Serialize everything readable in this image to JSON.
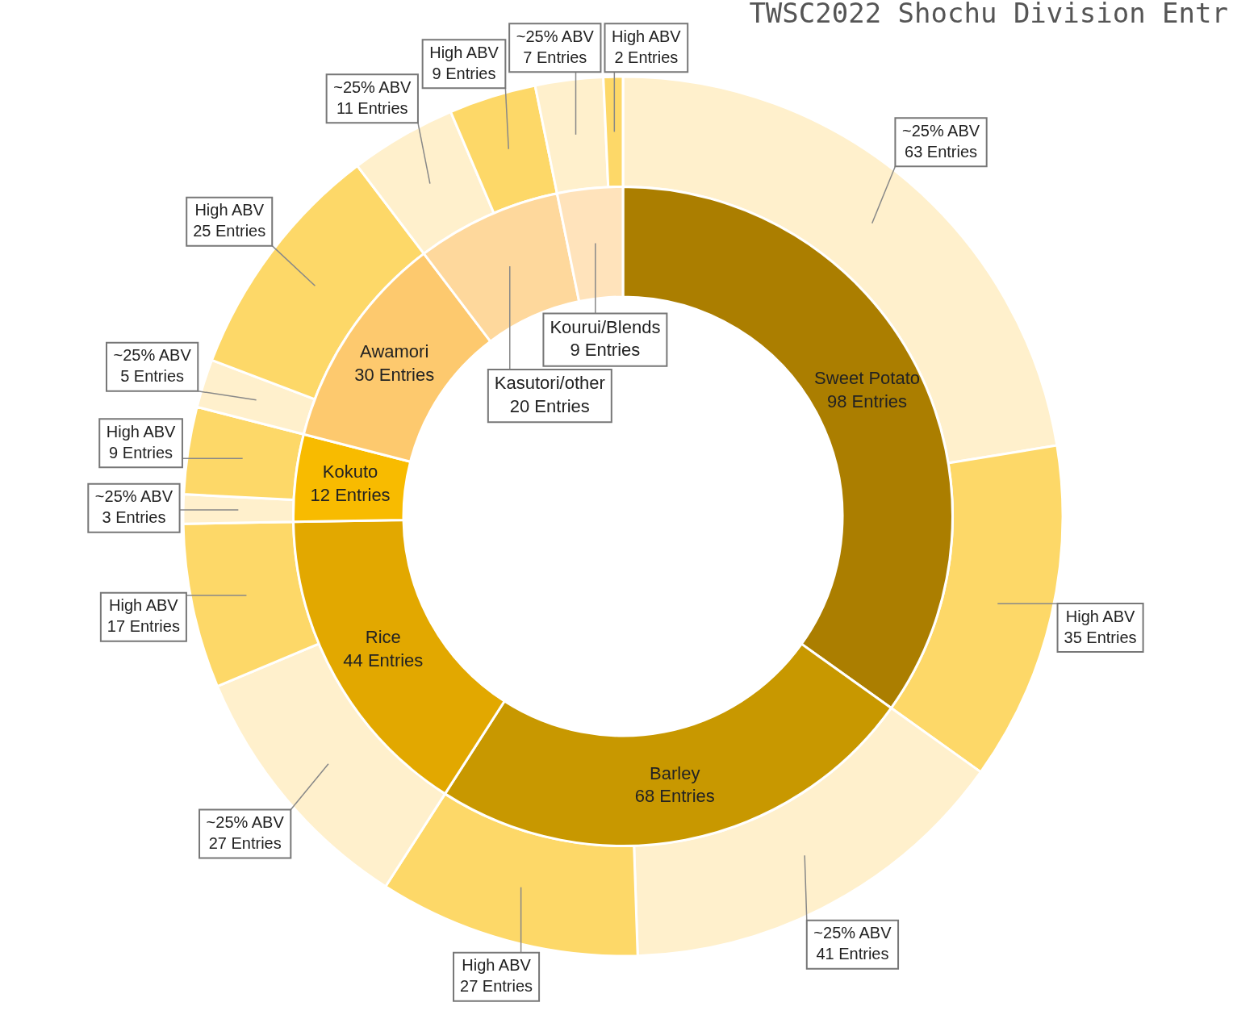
{
  "chart_data": [
    {
      "type": "donut",
      "title": "TWSC2022 Shochu Division Entr",
      "legend": false,
      "categories": [
        "Sweet Potato",
        "Barley",
        "Rice",
        "Kokuto",
        "Awamori",
        "Kasutori/other",
        "Kourui/Blends"
      ],
      "values": [
        98,
        68,
        44,
        12,
        30,
        20,
        9
      ],
      "colors": [
        "#ab7e00",
        "#c89800",
        "#e2a800",
        "#f8bb00",
        "#fdc96e",
        "#fed89c",
        "#ffe3bb"
      ],
      "value_labels": [
        "98 Entries",
        "68 Entries",
        "44 Entries",
        "12 Entries",
        "30 Entries",
        "20 Entries",
        "9 Entries"
      ]
    },
    {
      "type": "donut",
      "legend": false,
      "categories": [
        "~25% ABV",
        "High ABV",
        "~25% ABV",
        "High ABV",
        "~25% ABV",
        "High ABV",
        "~25% ABV",
        "High ABV",
        "~25% ABV",
        "High ABV",
        "~25% ABV",
        "High ABV",
        "~25% ABV",
        "High ABV"
      ],
      "values": [
        63,
        35,
        41,
        27,
        27,
        17,
        3,
        9,
        5,
        25,
        11,
        9,
        7,
        2
      ],
      "colors": [
        "#fff0cc",
        "#fdd868",
        "#fff0cc",
        "#fdd868",
        "#fff0cc",
        "#fdd868",
        "#fff0cc",
        "#fdd868",
        "#fff0cc",
        "#fdd868",
        "#fff0cc",
        "#fdd868",
        "#fff0cc",
        "#fdd868"
      ],
      "value_labels": [
        "63 Entries",
        "35 Entries",
        "41 Entries",
        "27 Entries",
        "27 Entries",
        "17 Entries",
        "3 Entries",
        "9 Entries",
        "5 Entries",
        "25 Entries",
        "11 Entries",
        "9 Entries",
        "7 Entries",
        "2 Entries"
      ]
    }
  ]
}
